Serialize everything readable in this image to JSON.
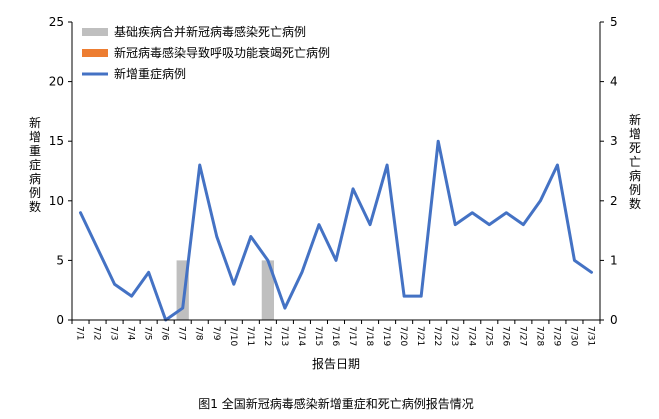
{
  "chart_data": {
    "type": "bar",
    "caption": "图1 全国新冠病毒感染新增重症和死亡病例报告情况",
    "xlabel": "报告日期",
    "ylabel_left": "新增重症病例数",
    "ylabel_right": "新增死亡病例数",
    "ylim_left": [
      0,
      25
    ],
    "yticks_left": [
      0,
      5,
      10,
      15,
      20,
      25
    ],
    "ylim_right": [
      0,
      5
    ],
    "yticks_right": [
      0,
      1,
      2,
      3,
      4,
      5
    ],
    "grid": false,
    "legend_position": "top-left",
    "categories": [
      "7/1",
      "7/2",
      "7/3",
      "7/4",
      "7/5",
      "7/6",
      "7/7",
      "7/8",
      "7/9",
      "7/10",
      "7/11",
      "7/12",
      "7/13",
      "7/14",
      "7/15",
      "7/16",
      "7/17",
      "7/18",
      "7/19",
      "7/20",
      "7/21",
      "7/22",
      "7/23",
      "7/24",
      "7/25",
      "7/26",
      "7/27",
      "7/28",
      "7/29",
      "7/30",
      "7/31"
    ],
    "series": [
      {
        "name": "基础疾病合并新冠病毒感染死亡病例",
        "type": "bar",
        "axis": "right",
        "color": "#bfbfbf",
        "values": [
          0,
          0,
          0,
          0,
          0,
          0,
          1,
          0,
          0,
          0,
          0,
          1,
          0,
          0,
          0,
          0,
          0,
          0,
          0,
          0,
          0,
          0,
          0,
          0,
          0,
          0,
          0,
          0,
          0,
          0,
          0
        ]
      },
      {
        "name": "新冠病毒感染导致呼吸功能衰竭死亡病例",
        "type": "bar",
        "axis": "right",
        "color": "#ed7d31",
        "values": [
          0,
          0,
          0,
          0,
          0,
          0,
          0,
          0,
          0,
          0,
          0,
          0,
          0,
          0,
          0,
          0,
          0,
          0,
          0,
          0,
          0,
          0,
          0,
          0,
          0,
          0,
          0,
          0,
          0,
          0,
          0
        ]
      },
      {
        "name": "新增重症病例",
        "type": "line",
        "axis": "left",
        "color": "#4472c4",
        "values": [
          9,
          6,
          3,
          2,
          4,
          0,
          1,
          13,
          7,
          3,
          7,
          5,
          1,
          4,
          8,
          5,
          11,
          8,
          13,
          2,
          2,
          15,
          8,
          9,
          8,
          9,
          8,
          10,
          13,
          5,
          4
        ]
      }
    ]
  }
}
